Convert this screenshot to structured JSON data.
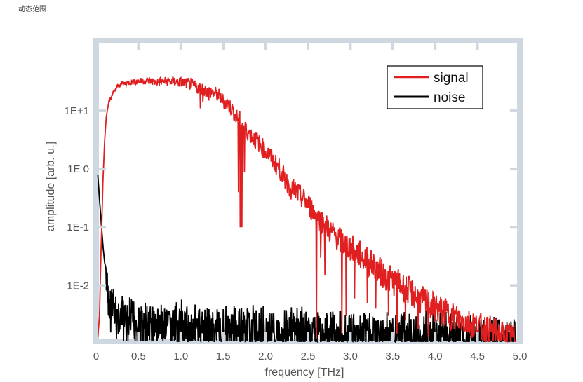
{
  "caption": "动态范围",
  "colors": {
    "frame": "#cfd8e0",
    "signal": "#e02020",
    "noise": "#000000",
    "text": "#555555"
  },
  "chart_data": {
    "type": "line",
    "title": "",
    "xlabel": "frequency [THz]",
    "ylabel": "amplitude [arb. u.]",
    "xscale": "linear",
    "yscale": "log",
    "xlim": [
      0,
      5.0
    ],
    "ylim": [
      0.0011,
      160
    ],
    "xticks": [
      0,
      0.5,
      1.0,
      1.5,
      2.0,
      2.5,
      3.0,
      3.5,
      4.0,
      4.5,
      5.0
    ],
    "xtick_labels": [
      "0",
      "0.5",
      "1.0",
      "1.5",
      "2.0",
      "2.5",
      "3.0",
      "3.5",
      "4.0",
      "4.5",
      "5.0"
    ],
    "yticks": [
      10,
      1,
      0.1,
      0.01
    ],
    "ytick_labels": [
      "1E+1",
      "1E 0",
      "1E-1",
      "1E-2"
    ],
    "grid": false,
    "legend": "top-right",
    "series": [
      {
        "name": "signal",
        "color": "#e02020",
        "points": [
          [
            0.02,
            0.0013
          ],
          [
            0.04,
            0.003
          ],
          [
            0.06,
            0.05
          ],
          [
            0.08,
            0.6
          ],
          [
            0.1,
            3
          ],
          [
            0.12,
            8
          ],
          [
            0.15,
            14
          ],
          [
            0.2,
            20
          ],
          [
            0.25,
            26
          ],
          [
            0.3,
            29
          ],
          [
            0.4,
            31
          ],
          [
            0.5,
            32
          ],
          [
            0.6,
            33
          ],
          [
            0.7,
            31
          ],
          [
            0.8,
            32
          ],
          [
            0.9,
            32
          ],
          [
            1.0,
            31
          ],
          [
            1.1,
            29
          ],
          [
            1.15,
            27
          ],
          [
            1.2,
            25
          ],
          [
            1.25,
            24
          ],
          [
            1.3,
            22
          ],
          [
            1.35,
            21
          ],
          [
            1.4,
            20
          ],
          [
            1.45,
            18
          ],
          [
            1.5,
            15
          ],
          [
            1.55,
            13
          ],
          [
            1.6,
            11
          ],
          [
            1.65,
            8
          ],
          [
            1.7,
            7
          ],
          [
            1.75,
            5
          ],
          [
            1.8,
            4.2
          ],
          [
            1.85,
            3.5
          ],
          [
            1.9,
            3
          ],
          [
            1.95,
            2.5
          ],
          [
            2.0,
            2
          ],
          [
            2.05,
            1.7
          ],
          [
            2.1,
            1.3
          ],
          [
            2.15,
            1.1
          ],
          [
            2.2,
            0.8
          ],
          [
            2.25,
            0.6
          ],
          [
            2.3,
            0.5
          ],
          [
            2.35,
            0.42
          ],
          [
            2.4,
            0.35
          ],
          [
            2.45,
            0.3
          ],
          [
            2.5,
            0.25
          ],
          [
            2.55,
            0.2
          ],
          [
            2.6,
            0.16
          ],
          [
            2.65,
            0.13
          ],
          [
            2.7,
            0.11
          ],
          [
            2.75,
            0.09
          ],
          [
            2.8,
            0.075
          ],
          [
            2.85,
            0.065
          ],
          [
            2.9,
            0.055
          ],
          [
            2.95,
            0.05
          ],
          [
            3.0,
            0.045
          ],
          [
            3.05,
            0.04
          ],
          [
            3.1,
            0.035
          ],
          [
            3.15,
            0.03
          ],
          [
            3.2,
            0.027
          ],
          [
            3.3,
            0.02
          ],
          [
            3.4,
            0.015
          ],
          [
            3.5,
            0.012
          ],
          [
            3.6,
            0.01
          ],
          [
            3.7,
            0.008
          ],
          [
            3.8,
            0.006
          ],
          [
            3.9,
            0.005
          ],
          [
            4.0,
            0.0042
          ],
          [
            4.1,
            0.0035
          ],
          [
            4.2,
            0.003
          ],
          [
            4.3,
            0.0026
          ],
          [
            4.4,
            0.0023
          ],
          [
            4.5,
            0.002
          ],
          [
            4.6,
            0.0018
          ],
          [
            4.7,
            0.0016
          ],
          [
            4.8,
            0.0014
          ],
          [
            4.9,
            0.0013
          ],
          [
            4.95,
            0.0012
          ]
        ],
        "dips": [
          [
            1.23,
            11
          ],
          [
            1.26,
            14
          ],
          [
            1.33,
            15
          ],
          [
            1.68,
            0.4
          ],
          [
            1.7,
            0.1
          ],
          [
            1.72,
            0.1
          ],
          [
            1.75,
            0.9
          ],
          [
            2.2,
            0.6
          ],
          [
            2.3,
            0.3
          ],
          [
            2.6,
            0.0012
          ],
          [
            2.65,
            0.03
          ],
          [
            2.7,
            0.015
          ],
          [
            2.9,
            0.0015
          ],
          [
            2.95,
            0.003
          ],
          [
            3.05,
            0.006
          ],
          [
            3.2,
            0.005
          ],
          [
            3.3,
            0.004
          ],
          [
            3.45,
            0.003
          ],
          [
            3.55,
            0.0015
          ],
          [
            3.65,
            0.0025
          ],
          [
            3.8,
            0.0018
          ],
          [
            3.92,
            0.0013
          ]
        ]
      },
      {
        "name": "noise",
        "color": "#000000",
        "points": [
          [
            0.02,
            0.8
          ],
          [
            0.04,
            0.3
          ],
          [
            0.06,
            0.12
          ],
          [
            0.08,
            0.05
          ],
          [
            0.1,
            0.025
          ],
          [
            0.15,
            0.012
          ],
          [
            0.2,
            0.008
          ],
          [
            0.3,
            0.006
          ],
          [
            0.5,
            0.005
          ],
          [
            1.0,
            0.0045
          ],
          [
            1.5,
            0.004
          ],
          [
            2.0,
            0.0038
          ],
          [
            2.5,
            0.0036
          ],
          [
            3.0,
            0.0034
          ],
          [
            3.5,
            0.0032
          ],
          [
            4.0,
            0.003
          ],
          [
            4.5,
            0.0028
          ],
          [
            4.95,
            0.0026
          ]
        ]
      }
    ]
  }
}
